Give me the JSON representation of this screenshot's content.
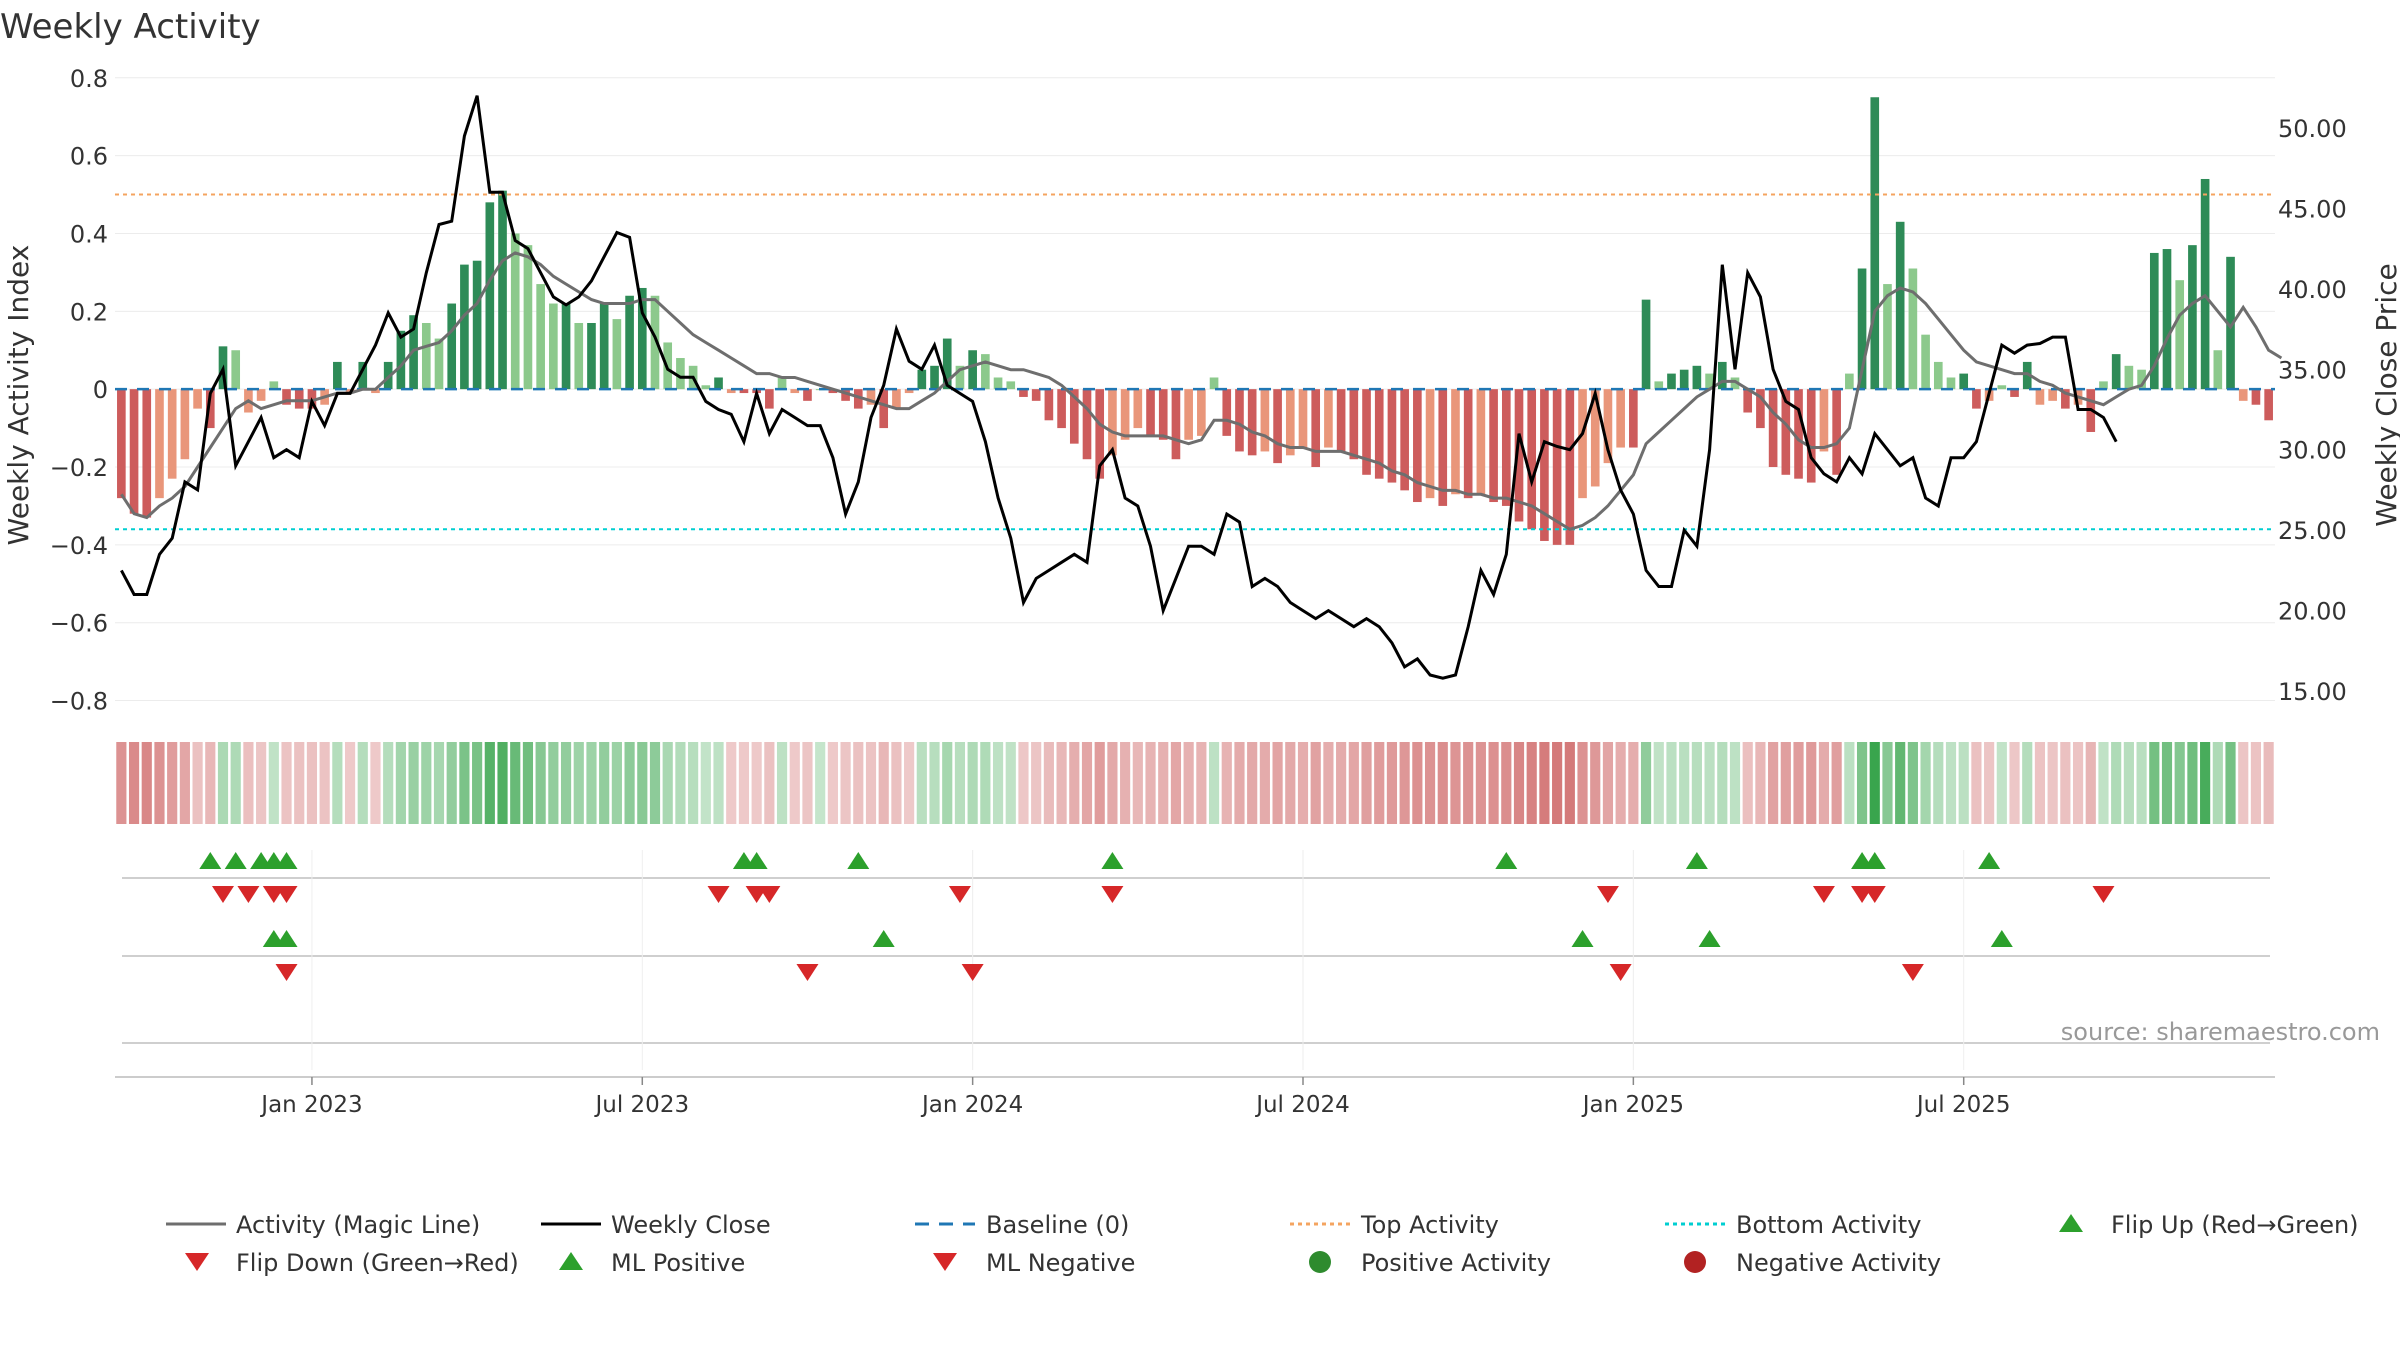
{
  "chart_data": {
    "type": "bar",
    "title": "Weekly Activity",
    "ylabel": "Weekly Activity Index",
    "y2label": "Weekly Close Price",
    "source": "source: sharemaestro.com",
    "ylim": [
      -0.85,
      0.82
    ],
    "y2lim": [
      13.2,
      53.6
    ],
    "y_ticks": [
      -0.8,
      -0.6,
      -0.4,
      -0.2,
      0,
      0.2,
      0.4,
      0.6,
      0.8
    ],
    "y_tick_labels": [
      "−0.8",
      "−0.6",
      "−0.4",
      "−0.2",
      "0",
      "0.2",
      "0.4",
      "0.6",
      "0.8"
    ],
    "y2_ticks": [
      15,
      20,
      25,
      30,
      35,
      40,
      45,
      50
    ],
    "y2_tick_labels": [
      "15.00",
      "20.00",
      "25.00",
      "30.00",
      "35.00",
      "40.00",
      "45.00",
      "50.00"
    ],
    "x_ticks": [
      15,
      41,
      67,
      93,
      119,
      145
    ],
    "x_tick_labels": [
      "Jan 2023",
      "Jul 2023",
      "Jan 2024",
      "Jul 2024",
      "Jan 2025",
      "Jul 2025"
    ],
    "top_activity": 0.5,
    "bottom_activity": -0.36,
    "activity": [
      -0.28,
      -0.32,
      -0.33,
      -0.28,
      -0.23,
      -0.18,
      -0.05,
      -0.1,
      0.11,
      0.1,
      -0.06,
      -0.03,
      0.02,
      -0.04,
      -0.05,
      -0.05,
      -0.04,
      0.07,
      -0.01,
      0.07,
      -0.01,
      0.07,
      0.15,
      0.19,
      0.17,
      0.13,
      0.22,
      0.32,
      0.33,
      0.48,
      0.51,
      0.4,
      0.37,
      0.27,
      0.22,
      0.22,
      0.17,
      0.17,
      0.22,
      0.18,
      0.24,
      0.26,
      0.24,
      0.12,
      0.08,
      0.06,
      0.01,
      0.03,
      -0.01,
      -0.01,
      -0.01,
      -0.05,
      0.03,
      -0.01,
      -0.03,
      0.0,
      -0.01,
      -0.03,
      -0.05,
      -0.04,
      -0.1,
      -0.05,
      -0.01,
      0.05,
      0.06,
      0.13,
      0.06,
      0.1,
      0.09,
      0.03,
      0.02,
      -0.02,
      -0.03,
      -0.08,
      -0.1,
      -0.14,
      -0.18,
      -0.23,
      -0.17,
      -0.13,
      -0.1,
      -0.12,
      -0.13,
      -0.18,
      -0.13,
      -0.12,
      0.03,
      -0.12,
      -0.16,
      -0.17,
      -0.16,
      -0.19,
      -0.17,
      -0.15,
      -0.2,
      -0.15,
      -0.16,
      -0.18,
      -0.22,
      -0.23,
      -0.24,
      -0.26,
      -0.29,
      -0.28,
      -0.3,
      -0.27,
      -0.28,
      -0.27,
      -0.29,
      -0.3,
      -0.34,
      -0.36,
      -0.39,
      -0.4,
      -0.4,
      -0.28,
      -0.25,
      -0.19,
      -0.15,
      -0.15,
      0.23,
      0.02,
      0.04,
      0.05,
      0.06,
      0.04,
      0.07,
      0.03,
      -0.06,
      -0.1,
      -0.2,
      -0.22,
      -0.23,
      -0.24,
      -0.16,
      -0.22,
      0.04,
      0.31,
      0.75,
      0.27,
      0.43,
      0.31,
      0.14,
      0.07,
      0.03,
      0.04,
      -0.05,
      -0.03,
      0.01,
      -0.02,
      0.07,
      -0.04,
      -0.03,
      -0.05,
      -0.04,
      -0.11,
      0.02,
      0.09,
      0.06,
      0.05,
      0.35,
      0.36,
      0.28,
      0.37,
      0.54,
      0.1,
      0.34,
      -0.03,
      -0.04,
      -0.08
    ],
    "magic_line": [
      -0.27,
      -0.32,
      -0.33,
      -0.3,
      -0.28,
      -0.25,
      -0.2,
      -0.15,
      -0.1,
      -0.05,
      -0.03,
      -0.05,
      -0.04,
      -0.03,
      -0.03,
      -0.03,
      -0.02,
      -0.01,
      -0.01,
      0.0,
      0.0,
      0.03,
      0.06,
      0.1,
      0.11,
      0.12,
      0.15,
      0.19,
      0.22,
      0.28,
      0.33,
      0.35,
      0.34,
      0.32,
      0.29,
      0.27,
      0.25,
      0.23,
      0.22,
      0.22,
      0.22,
      0.23,
      0.23,
      0.2,
      0.17,
      0.14,
      0.12,
      0.1,
      0.08,
      0.06,
      0.04,
      0.04,
      0.03,
      0.03,
      0.02,
      0.01,
      0.0,
      -0.01,
      -0.02,
      -0.03,
      -0.04,
      -0.05,
      -0.05,
      -0.03,
      -0.01,
      0.02,
      0.05,
      0.06,
      0.07,
      0.06,
      0.05,
      0.05,
      0.04,
      0.03,
      0.01,
      -0.02,
      -0.05,
      -0.09,
      -0.11,
      -0.12,
      -0.12,
      -0.12,
      -0.12,
      -0.13,
      -0.14,
      -0.13,
      -0.08,
      -0.08,
      -0.09,
      -0.11,
      -0.12,
      -0.14,
      -0.15,
      -0.15,
      -0.16,
      -0.16,
      -0.16,
      -0.17,
      -0.18,
      -0.19,
      -0.21,
      -0.22,
      -0.24,
      -0.25,
      -0.26,
      -0.26,
      -0.27,
      -0.27,
      -0.28,
      -0.28,
      -0.29,
      -0.3,
      -0.32,
      -0.34,
      -0.36,
      -0.35,
      -0.33,
      -0.3,
      -0.26,
      -0.22,
      -0.14,
      -0.11,
      -0.08,
      -0.05,
      -0.02,
      0.0,
      0.02,
      0.02,
      0.0,
      -0.02,
      -0.06,
      -0.09,
      -0.13,
      -0.15,
      -0.15,
      -0.14,
      -0.1,
      0.05,
      0.2,
      0.24,
      0.26,
      0.25,
      0.22,
      0.18,
      0.14,
      0.1,
      0.07,
      0.06,
      0.05,
      0.04,
      0.04,
      0.02,
      0.01,
      -0.01,
      -0.02,
      -0.03,
      -0.04,
      -0.02,
      0.0,
      0.01,
      0.06,
      0.13,
      0.19,
      0.22,
      0.24,
      0.2,
      0.16,
      0.21,
      0.16,
      0.1,
      0.08
    ],
    "weekly_close": [
      22.5,
      21.0,
      21.0,
      23.5,
      24.5,
      28.0,
      27.5,
      33.5,
      35.0,
      29.0,
      30.5,
      32.0,
      29.5,
      30.0,
      29.5,
      33.0,
      31.5,
      33.5,
      33.5,
      35.0,
      36.5,
      38.5,
      37.0,
      37.5,
      41.0,
      44.0,
      44.2,
      49.5,
      52.0,
      46.0,
      46.0,
      43.0,
      42.5,
      41.0,
      39.5,
      39.0,
      39.5,
      40.5,
      42.0,
      43.5,
      43.2,
      38.5,
      37.0,
      35.0,
      34.5,
      34.5,
      33.0,
      32.5,
      32.2,
      30.5,
      33.5,
      31.0,
      32.5,
      32.0,
      31.5,
      31.5,
      29.5,
      26.0,
      28.0,
      32.0,
      34.0,
      37.5,
      35.5,
      35.0,
      36.5,
      34.0,
      33.5,
      33.0,
      30.5,
      27.0,
      24.5,
      20.5,
      22.0,
      22.5,
      23.0,
      23.5,
      23.0,
      29.0,
      30.0,
      27.0,
      26.5,
      24.0,
      20.0,
      22.0,
      24.0,
      24.0,
      23.5,
      26.0,
      25.5,
      21.5,
      22.0,
      21.5,
      20.5,
      20.0,
      19.5,
      20.0,
      19.5,
      19.0,
      19.5,
      19.0,
      18.0,
      16.5,
      17.0,
      16.0,
      15.8,
      16.0,
      19.0,
      22.5,
      21.0,
      23.5,
      31.0,
      28.0,
      30.5,
      30.2,
      30.0,
      31.0,
      33.5,
      30.0,
      27.5,
      26.0,
      22.5,
      21.5,
      21.5,
      25.0,
      24.0,
      30.0,
      41.5,
      35.0,
      41.0,
      39.5,
      35.0,
      33.0,
      32.5,
      29.5,
      28.5,
      28.0,
      29.5,
      28.5,
      31.0,
      30.0,
      29.0,
      29.5,
      27.0,
      26.5,
      29.5,
      29.5,
      30.5,
      33.5,
      36.5,
      36.0,
      36.5,
      36.6,
      37.0,
      37.0,
      32.5,
      32.5,
      32.0,
      30.5
    ]
  },
  "legend": {
    "magic_line": "Activity (Magic Line)",
    "weekly_close": "Weekly Close",
    "baseline": "Baseline (0)",
    "top_activity": "Top Activity",
    "bottom_activity": "Bottom Activity",
    "flip_up": "Flip Up (Red→Green)",
    "flip_down": "Flip Down (Green→Red)",
    "ml_positive": "ML Positive",
    "ml_negative": "ML Negative",
    "positive_activity": "Positive Activity",
    "negative_activity": "Negative Activity"
  },
  "markers": {
    "flip_up": [
      7,
      9,
      11,
      12,
      13,
      49,
      50,
      58,
      78,
      109,
      124,
      137,
      138,
      147
    ],
    "flip_down": [
      8,
      10,
      12,
      13,
      47,
      50,
      51,
      66,
      78,
      117,
      134,
      137,
      138,
      156
    ],
    "ml_positive": [
      12,
      13,
      60,
      115,
      125,
      148
    ],
    "ml_negative": [
      13,
      54,
      67,
      118,
      141
    ]
  },
  "colors": {
    "pos_dark": "#2e8b57",
    "pos_light": "#8cc98c",
    "neg_dark": "#cd5c5c",
    "neg_light": "#e9967a",
    "magic_line": "#6e6e6e",
    "close": "#000000",
    "baseline": "#1f77b4",
    "top": "#f4a460",
    "bottom": "#00ced1",
    "tri_up": "#2ca02c",
    "tri_down": "#d62728",
    "pos_dot": "#2e8b2e",
    "neg_dot": "#b22222"
  }
}
